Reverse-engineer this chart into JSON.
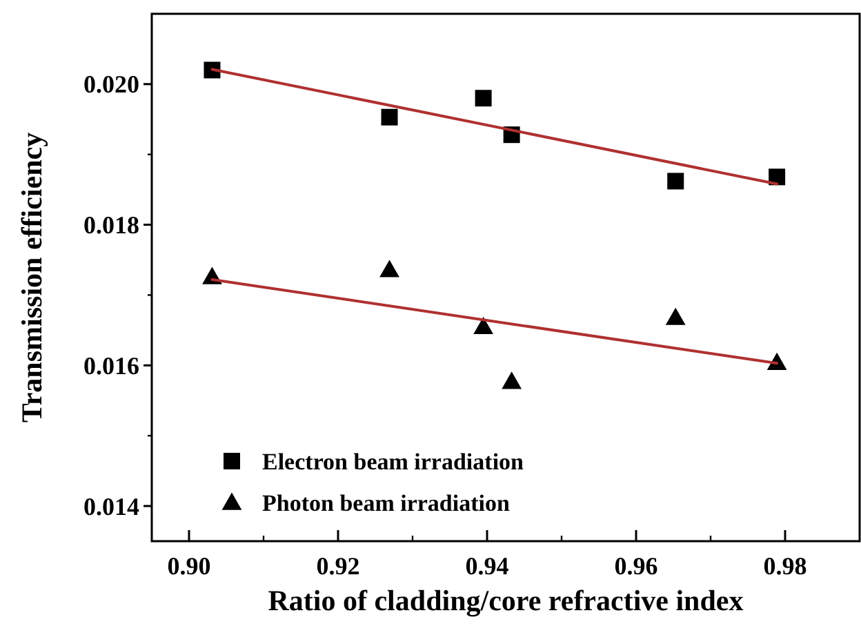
{
  "chart_data": {
    "type": "scatter",
    "xlabel": "Ratio of cladding/core refractive index",
    "ylabel": "Transmission efficiency",
    "xlim": [
      0.895,
      0.99
    ],
    "xticks": [
      {
        "value": 0.9,
        "label": "0.90"
      },
      0.92,
      0.94,
      0.96,
      0.98
    ],
    "ylim": [
      0.0135,
      0.021
    ],
    "yticks": [
      0.014,
      0.016,
      0.018,
      {
        "value": 0.02,
        "label": "0.020"
      }
    ],
    "x": [
      0.9031,
      0.9269,
      0.9395,
      0.9433,
      0.9653,
      0.9789
    ],
    "series": [
      {
        "name": "Electron beam irradiation",
        "marker": "square",
        "color": "#000000",
        "values": [
          0.0202,
          0.01953,
          0.0198,
          0.01928,
          0.01862,
          0.01868
        ]
      },
      {
        "name": "Photon beam irradiation",
        "marker": "triangle",
        "color": "#000000",
        "values": [
          0.01726,
          0.01736,
          0.01655,
          0.01577,
          0.01668,
          0.01604
        ]
      },
      {
        "type": "line",
        "marker": "none",
        "color": "#b03030",
        "values": [
          0.02021,
          null,
          null,
          null,
          null,
          0.01858
        ]
      },
      {
        "type": "line",
        "marker": "none",
        "color": "#b03030",
        "values": [
          0.01722,
          null,
          null,
          null,
          null,
          0.01603
        ]
      }
    ],
    "legend": "bottom left",
    "grid": false
  }
}
